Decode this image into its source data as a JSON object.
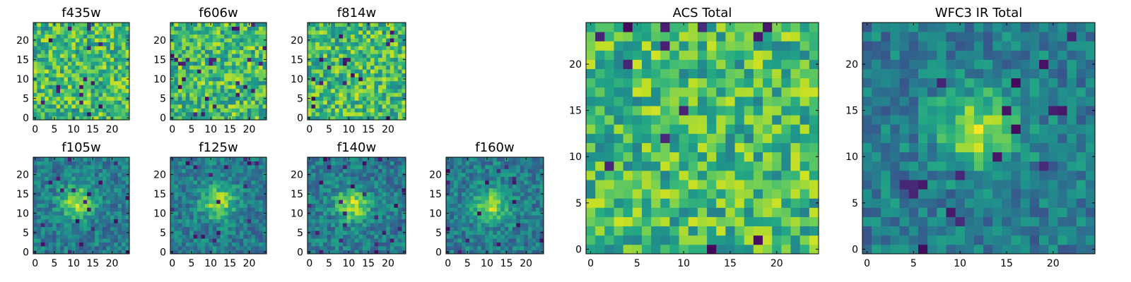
{
  "chart_data": [
    {
      "type": "heatmap",
      "title": "f435w",
      "grid_size": 25,
      "xticks": [
        "0",
        "5",
        "10",
        "15",
        "20"
      ],
      "yticks": [
        "0",
        "5",
        "10",
        "15",
        "20"
      ],
      "xlim": [
        -0.5,
        24.5
      ],
      "ylim": [
        -0.5,
        24.5
      ],
      "colormap": "viridis",
      "pattern": "noise",
      "seed": 11
    },
    {
      "type": "heatmap",
      "title": "f606w",
      "grid_size": 25,
      "xticks": [
        "0",
        "5",
        "10",
        "15",
        "20"
      ],
      "yticks": [
        "0",
        "5",
        "10",
        "15",
        "20"
      ],
      "xlim": [
        -0.5,
        24.5
      ],
      "ylim": [
        -0.5,
        24.5
      ],
      "colormap": "viridis",
      "pattern": "noise",
      "seed": 23
    },
    {
      "type": "heatmap",
      "title": "f814w",
      "grid_size": 25,
      "xticks": [
        "0",
        "5",
        "10",
        "15",
        "20"
      ],
      "yticks": [
        "0",
        "5",
        "10",
        "15",
        "20"
      ],
      "xlim": [
        -0.5,
        24.5
      ],
      "ylim": [
        -0.5,
        24.5
      ],
      "colormap": "viridis",
      "pattern": "noise",
      "seed": 37
    },
    {
      "type": "heatmap",
      "title": "f105w",
      "grid_size": 25,
      "xticks": [
        "0",
        "5",
        "10",
        "15",
        "20"
      ],
      "yticks": [
        "0",
        "5",
        "10",
        "15",
        "20"
      ],
      "xlim": [
        -0.5,
        24.5
      ],
      "ylim": [
        -0.5,
        24.5
      ],
      "colormap": "viridis",
      "pattern": "source",
      "source_center": [
        11,
        13
      ],
      "seed": 41
    },
    {
      "type": "heatmap",
      "title": "f125w",
      "grid_size": 25,
      "xticks": [
        "0",
        "5",
        "10",
        "15",
        "20"
      ],
      "yticks": [
        "0",
        "5",
        "10",
        "15",
        "20"
      ],
      "xlim": [
        -0.5,
        24.5
      ],
      "ylim": [
        -0.5,
        24.5
      ],
      "colormap": "viridis",
      "pattern": "source",
      "source_center": [
        12,
        13
      ],
      "seed": 53
    },
    {
      "type": "heatmap",
      "title": "f140w",
      "grid_size": 25,
      "xticks": [
        "0",
        "5",
        "10",
        "15",
        "20"
      ],
      "yticks": [
        "0",
        "5",
        "10",
        "15",
        "20"
      ],
      "xlim": [
        -0.5,
        24.5
      ],
      "ylim": [
        -0.5,
        24.5
      ],
      "colormap": "viridis",
      "pattern": "source",
      "source_center": [
        11,
        12
      ],
      "seed": 67
    },
    {
      "type": "heatmap",
      "title": "f160w",
      "grid_size": 25,
      "xticks": [
        "0",
        "5",
        "10",
        "15",
        "20"
      ],
      "yticks": [
        "0",
        "5",
        "10",
        "15",
        "20"
      ],
      "xlim": [
        -0.5,
        24.5
      ],
      "ylim": [
        -0.5,
        24.5
      ],
      "colormap": "viridis",
      "pattern": "source",
      "source_center": [
        11,
        12
      ],
      "seed": 79
    },
    {
      "type": "heatmap",
      "title": "ACS Total",
      "grid_size": 25,
      "xticks": [
        "0",
        "5",
        "10",
        "15",
        "20"
      ],
      "yticks": [
        "0",
        "5",
        "10",
        "15",
        "20"
      ],
      "xlim": [
        -0.5,
        24.5
      ],
      "ylim": [
        -0.5,
        24.5
      ],
      "colormap": "viridis",
      "pattern": "noise",
      "seed": 97
    },
    {
      "type": "heatmap",
      "title": "WFC3 IR Total",
      "grid_size": 25,
      "xticks": [
        "0",
        "5",
        "10",
        "15",
        "20"
      ],
      "yticks": [
        "0",
        "5",
        "10",
        "15",
        "20"
      ],
      "xlim": [
        -0.5,
        24.5
      ],
      "ylim": [
        -0.5,
        24.5
      ],
      "colormap": "viridis",
      "pattern": "source",
      "source_center": [
        12,
        13
      ],
      "seed": 101
    }
  ]
}
